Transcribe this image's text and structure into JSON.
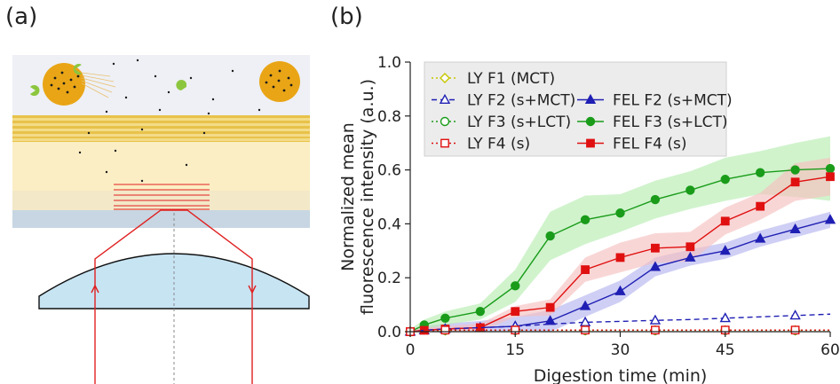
{
  "panels": {
    "a": "(a)",
    "b": "(b)"
  },
  "colors": {
    "yellow": "#c6c600",
    "blue": "#1f1fb4",
    "green": "#1a9c1a",
    "red": "#e01010",
    "band_green": "#b7ecb0",
    "band_blue": "#b6b6f0",
    "band_red": "#f6c0c0",
    "band_gray": "#b8b8b8"
  },
  "chart_data": {
    "type": "line",
    "xlabel": "Digestion time (min)",
    "ylabel_lines": [
      "Normalized mean",
      "fluorescence intensity (a.u.)"
    ],
    "xlim": [
      0,
      60
    ],
    "ylim": [
      0,
      1.0
    ],
    "xticks": [
      "0",
      "15",
      "30",
      "45",
      "60"
    ],
    "yticks": [
      "0.0",
      "0.2",
      "0.4",
      "0.6",
      "0.8",
      "1.0"
    ],
    "legend_position": "top-left",
    "series": [
      {
        "name": "LY F1 (MCT)",
        "color_key": "yellow",
        "marker": "diamond-open",
        "dash": "dotted",
        "x": [
          0,
          2,
          5,
          10,
          15,
          20,
          25,
          30,
          35,
          40,
          45,
          50,
          55,
          60
        ],
        "y": [
          0,
          0.003,
          0.005,
          0.005,
          0.005,
          0.005,
          0.005,
          0.005,
          0.005,
          0.005,
          0.005,
          0.005,
          0.005,
          0.005
        ],
        "band": null
      },
      {
        "name": "LY F2 (s+MCT)",
        "color_key": "blue",
        "marker": "triangle-open",
        "dash": "dashed",
        "x": [
          0,
          2,
          5,
          10,
          15,
          20,
          25,
          30,
          35,
          40,
          45,
          50,
          55,
          60
        ],
        "y": [
          0,
          0.005,
          0.01,
          0.015,
          0.02,
          0.028,
          0.035,
          0.038,
          0.042,
          0.045,
          0.05,
          0.055,
          0.06,
          0.065
        ],
        "band": null
      },
      {
        "name": "LY F3 (s+LCT)",
        "color_key": "green",
        "marker": "circle-open",
        "dash": "dotted",
        "x": [
          0,
          2,
          5,
          10,
          15,
          20,
          25,
          30,
          35,
          40,
          45,
          50,
          55,
          60
        ],
        "y": [
          0,
          0.003,
          0.005,
          0.005,
          0.005,
          0.005,
          0.005,
          0.005,
          0.005,
          0.005,
          0.005,
          0.005,
          0.005,
          0.005
        ],
        "band": null
      },
      {
        "name": "LY F4 (s)",
        "color_key": "red",
        "marker": "square-open",
        "dash": "dotted",
        "x": [
          0,
          2,
          5,
          10,
          15,
          20,
          25,
          30,
          35,
          40,
          45,
          50,
          55,
          60
        ],
        "y": [
          0,
          0.004,
          0.006,
          0.006,
          0.006,
          0.006,
          0.006,
          0.006,
          0.006,
          0.006,
          0.006,
          0.006,
          0.006,
          0.006
        ],
        "band": null
      },
      {
        "name": "FEL F2 (s+MCT)",
        "color_key": "blue",
        "marker": "triangle",
        "dash": "solid",
        "x": [
          0,
          2,
          5,
          10,
          15,
          20,
          25,
          30,
          35,
          40,
          45,
          50,
          55,
          60
        ],
        "y": [
          0,
          0.005,
          0.01,
          0.015,
          0.02,
          0.04,
          0.095,
          0.15,
          0.24,
          0.275,
          0.3,
          0.345,
          0.38,
          0.415
        ],
        "band": [
          0.01,
          0.015,
          0.02,
          0.025,
          0.035,
          0.04,
          0.04,
          0.04,
          0.035,
          0.03,
          0.03,
          0.03,
          0.03,
          0.03
        ]
      },
      {
        "name": "FEL F3 (s+LCT)",
        "color_key": "green",
        "marker": "circle",
        "dash": "solid",
        "x": [
          0,
          2,
          5,
          10,
          15,
          20,
          25,
          30,
          35,
          40,
          45,
          50,
          55,
          60
        ],
        "y": [
          0,
          0.025,
          0.05,
          0.075,
          0.17,
          0.355,
          0.415,
          0.44,
          0.49,
          0.525,
          0.565,
          0.59,
          0.6,
          0.605
        ],
        "band": [
          0.01,
          0.02,
          0.025,
          0.03,
          0.06,
          0.09,
          0.09,
          0.07,
          0.07,
          0.07,
          0.08,
          0.08,
          0.1,
          0.12
        ]
      },
      {
        "name": "FEL F4 (s)",
        "color_key": "red",
        "marker": "square",
        "dash": "solid",
        "x": [
          0,
          2,
          5,
          10,
          15,
          20,
          25,
          30,
          35,
          40,
          45,
          50,
          55,
          60
        ],
        "y": [
          0,
          0.005,
          0.01,
          0.015,
          0.075,
          0.09,
          0.23,
          0.275,
          0.31,
          0.315,
          0.41,
          0.465,
          0.555,
          0.575
        ],
        "band": [
          0.005,
          0.01,
          0.01,
          0.015,
          0.02,
          0.03,
          0.045,
          0.055,
          0.055,
          0.055,
          0.05,
          0.05,
          0.07,
          0.07
        ]
      }
    ],
    "legend_order": [
      [
        0,
        null
      ],
      [
        1,
        4
      ],
      [
        2,
        5
      ],
      [
        3,
        6
      ]
    ]
  }
}
